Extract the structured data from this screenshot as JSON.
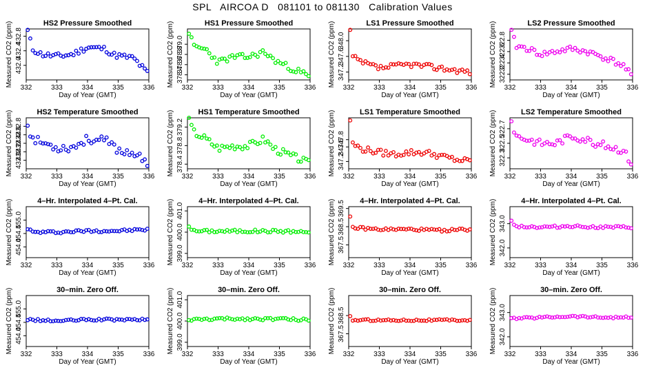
{
  "title": "SPL   AIRCOA D   081101 to 081130   Calibration Values",
  "chart_data": [
    {
      "type": "scatter",
      "title": "HS2 Pressure Smoothed",
      "xlabel": "Day of Year (GMT)",
      "ylabel": "Measured CO2 (ppm)",
      "color": "#0000dd",
      "xlim": [
        332,
        336
      ],
      "ylim": [
        431.6,
        433.0
      ],
      "xticks": [
        332,
        333,
        334,
        335,
        336
      ],
      "yticks": [
        "432.0",
        "432.4",
        "432.8"
      ],
      "seed": 11,
      "anchors": [
        [
          332.05,
          432.95
        ],
        [
          332.2,
          432.45
        ],
        [
          332.5,
          432.3
        ],
        [
          333.0,
          432.25
        ],
        [
          333.5,
          432.3
        ],
        [
          334.0,
          432.5
        ],
        [
          334.6,
          432.45
        ],
        [
          334.8,
          432.3
        ],
        [
          335.1,
          432.25
        ],
        [
          335.5,
          432.2
        ],
        [
          336.0,
          431.75
        ]
      ],
      "noise": 0.08
    },
    {
      "type": "scatter",
      "title": "HS1 Pressure Smoothed",
      "xlabel": "Day of Year (GMT)",
      "ylabel": "Measured CO2 (ppm)",
      "color": "#00ee00",
      "xlim": [
        332,
        336
      ],
      "ylim": [
        378.3,
        379.3
      ],
      "xticks": [
        332,
        333,
        334,
        335,
        336
      ],
      "yticks": [
        "378.4",
        "378.6",
        "378.8",
        "379.0"
      ],
      "seed": 23,
      "anchors": [
        [
          332.05,
          379.25
        ],
        [
          332.2,
          378.95
        ],
        [
          332.6,
          378.9
        ],
        [
          333.0,
          378.65
        ],
        [
          333.5,
          378.75
        ],
        [
          334.0,
          378.75
        ],
        [
          334.5,
          378.85
        ],
        [
          334.8,
          378.7
        ],
        [
          335.3,
          378.55
        ],
        [
          335.7,
          378.45
        ],
        [
          336.0,
          378.35
        ]
      ],
      "noise": 0.06
    },
    {
      "type": "scatter",
      "title": "LS1 Pressure Smoothed",
      "xlabel": "Day of Year (GMT)",
      "ylabel": "Measured CO2 (ppm)",
      "color": "#ee0000",
      "xlim": [
        332,
        336
      ],
      "ylim": [
        347.0,
        348.3
      ],
      "xticks": [
        332,
        333,
        334,
        335,
        336
      ],
      "yticks": [
        "347.2",
        "347.6",
        "348.0"
      ],
      "seed": 37,
      "anchors": [
        [
          332.05,
          348.25
        ],
        [
          332.1,
          347.6
        ],
        [
          332.4,
          347.45
        ],
        [
          333.0,
          347.3
        ],
        [
          333.5,
          347.35
        ],
        [
          334.0,
          347.4
        ],
        [
          334.5,
          347.35
        ],
        [
          335.0,
          347.3
        ],
        [
          335.5,
          347.25
        ],
        [
          336.0,
          347.2
        ]
      ],
      "noise": 0.07
    },
    {
      "type": "scatter",
      "title": "LS2 Pressure Smoothed",
      "xlabel": "Day of Year (GMT)",
      "ylabel": "Measured CO2 (ppm)",
      "color": "#ee00ee",
      "xlim": [
        332,
        336
      ],
      "ylim": [
        322.1,
        323.0
      ],
      "xticks": [
        332,
        333,
        334,
        335,
        336
      ],
      "yticks": [
        "322.2",
        "322.4",
        "322.6",
        "322.8"
      ],
      "seed": 41,
      "anchors": [
        [
          332.05,
          322.95
        ],
        [
          332.2,
          322.7
        ],
        [
          332.6,
          322.65
        ],
        [
          333.0,
          322.55
        ],
        [
          333.5,
          322.6
        ],
        [
          334.0,
          322.65
        ],
        [
          334.5,
          322.6
        ],
        [
          334.8,
          322.55
        ],
        [
          335.3,
          322.45
        ],
        [
          335.7,
          322.35
        ],
        [
          336.0,
          322.15
        ]
      ],
      "noise": 0.05
    },
    {
      "type": "scatter",
      "title": "HS2 Temperature Smoothed",
      "xlabel": "Day of Year (GMT)",
      "ylabel": "Measured CO2 (ppm)",
      "color": "#0000dd",
      "xlim": [
        332,
        336
      ],
      "ylim": [
        431.8,
        433.0
      ],
      "xticks": [
        332,
        333,
        334,
        335,
        336
      ],
      "yticks": [
        "432.0",
        "432.2",
        "432.4",
        "432.6",
        "432.8"
      ],
      "seed": 53,
      "anchors": [
        [
          332.05,
          432.85
        ],
        [
          332.2,
          432.5
        ],
        [
          332.6,
          432.4
        ],
        [
          333.0,
          432.3
        ],
        [
          333.5,
          432.3
        ],
        [
          334.0,
          432.5
        ],
        [
          334.6,
          432.45
        ],
        [
          334.8,
          432.35
        ],
        [
          335.1,
          432.2
        ],
        [
          335.5,
          432.2
        ],
        [
          336.0,
          431.85
        ]
      ],
      "noise": 0.1
    },
    {
      "type": "scatter",
      "title": "HS1 Temperature Smoothed",
      "xlabel": "Day of Year (GMT)",
      "ylabel": "Measured CO2 (ppm)",
      "color": "#00ee00",
      "xlim": [
        332,
        336
      ],
      "ylim": [
        378.3,
        379.4
      ],
      "xticks": [
        332,
        333,
        334,
        335,
        336
      ],
      "yticks": [
        "378.4",
        "378.8",
        "379.2"
      ],
      "seed": 67,
      "anchors": [
        [
          332.05,
          379.35
        ],
        [
          332.2,
          379.1
        ],
        [
          332.6,
          378.95
        ],
        [
          333.0,
          378.75
        ],
        [
          333.5,
          378.8
        ],
        [
          334.0,
          378.8
        ],
        [
          334.5,
          378.95
        ],
        [
          334.8,
          378.75
        ],
        [
          335.3,
          378.6
        ],
        [
          335.7,
          378.5
        ],
        [
          336.0,
          378.4
        ]
      ],
      "noise": 0.08
    },
    {
      "type": "scatter",
      "title": "LS1 Temperature Smoothed",
      "xlabel": "Day of Year (GMT)",
      "ylabel": "Measured CO2 (ppm)",
      "color": "#ee0000",
      "xlim": [
        332,
        336
      ],
      "ylim": [
        347.0,
        348.4
      ],
      "xticks": [
        332,
        333,
        334,
        335,
        336
      ],
      "yticks": [
        "347.2",
        "347.6",
        "347.8"
      ],
      "seed": 79,
      "anchors": [
        [
          332.05,
          348.35
        ],
        [
          332.1,
          347.7
        ],
        [
          332.4,
          347.55
        ],
        [
          333.0,
          347.45
        ],
        [
          333.5,
          347.4
        ],
        [
          334.0,
          347.45
        ],
        [
          334.5,
          347.45
        ],
        [
          335.0,
          347.35
        ],
        [
          335.5,
          347.25
        ],
        [
          336.0,
          347.2
        ]
      ],
      "noise": 0.08
    },
    {
      "type": "scatter",
      "title": "LS2 Temperature Smoothed",
      "xlabel": "Day of Year (GMT)",
      "ylabel": "Measured CO2 (ppm)",
      "color": "#ee00ee",
      "xlim": [
        332,
        336
      ],
      "ylim": [
        322.15,
        322.85
      ],
      "xticks": [
        332,
        333,
        334,
        335,
        336
      ],
      "yticks": [
        "322.3",
        "322.5",
        "322.7"
      ],
      "seed": 83,
      "anchors": [
        [
          332.05,
          322.8
        ],
        [
          332.2,
          322.6
        ],
        [
          332.6,
          322.55
        ],
        [
          333.0,
          322.5
        ],
        [
          333.5,
          322.5
        ],
        [
          334.0,
          322.6
        ],
        [
          334.5,
          322.55
        ],
        [
          334.8,
          322.5
        ],
        [
          335.3,
          322.45
        ],
        [
          335.7,
          322.4
        ],
        [
          336.0,
          322.2
        ]
      ],
      "noise": 0.05
    },
    {
      "type": "scatter",
      "title": "4–Hr. Interpolated 4–Pt. Cal.",
      "xlabel": "Day of Year (GMT)",
      "ylabel": "Measured CO2 (ppm)",
      "color": "#0000dd",
      "xlim": [
        332,
        336
      ],
      "ylim": [
        453.6,
        455.5
      ],
      "xticks": [
        332,
        333,
        334,
        335,
        336
      ],
      "yticks": [
        "454.0",
        "454.5",
        "455.0"
      ],
      "seed": 97,
      "anchors": [
        [
          332.05,
          454.7
        ],
        [
          332.2,
          454.55
        ],
        [
          333.0,
          454.55
        ],
        [
          334.0,
          454.6
        ],
        [
          335.0,
          454.6
        ],
        [
          336.0,
          454.65
        ]
      ],
      "noise": 0.05
    },
    {
      "type": "scatter",
      "title": "4–Hr. Interpolated 4–Pt. Cal.",
      "xlabel": "Day of Year (GMT)",
      "ylabel": "Measured CO2 (ppm)",
      "color": "#00ee00",
      "xlim": [
        332,
        336
      ],
      "ylim": [
        398.8,
        401.2
      ],
      "xticks": [
        332,
        333,
        334,
        335,
        336
      ],
      "yticks": [
        "399.0",
        "400.0",
        "401.0"
      ],
      "seed": 101,
      "anchors": [
        [
          332.05,
          400.3
        ],
        [
          332.2,
          400.05
        ],
        [
          333.0,
          400.05
        ],
        [
          334.0,
          400.05
        ],
        [
          335.0,
          400.05
        ],
        [
          336.0,
          400.0
        ]
      ],
      "noise": 0.07
    },
    {
      "type": "scatter",
      "title": "4–Hr. Interpolated 4–Pt. Cal.",
      "xlabel": "Day of Year (GMT)",
      "ylabel": "Measured CO2 (ppm)",
      "color": "#ee0000",
      "xlim": [
        332,
        336
      ],
      "ylim": [
        366.8,
        369.6
      ],
      "xticks": [
        332,
        333,
        334,
        335,
        336
      ],
      "yticks": [
        "367.5",
        "368.5",
        "369.5"
      ],
      "seed": 109,
      "anchors": [
        [
          332.05,
          369.05
        ],
        [
          332.1,
          368.45
        ],
        [
          333.0,
          368.35
        ],
        [
          334.0,
          368.35
        ],
        [
          335.0,
          368.3
        ],
        [
          336.0,
          368.35
        ]
      ],
      "noise": 0.07
    },
    {
      "type": "scatter",
      "title": "4–Hr. Interpolated 4–Pt. Cal.",
      "xlabel": "Day of Year (GMT)",
      "ylabel": "Measured CO2 (ppm)",
      "color": "#ee00ee",
      "xlim": [
        332,
        336
      ],
      "ylim": [
        341.6,
        343.7
      ],
      "xticks": [
        332,
        333,
        334,
        335,
        336
      ],
      "yticks": [
        "342.0",
        "343.0"
      ],
      "seed": 113,
      "anchors": [
        [
          332.05,
          343.1
        ],
        [
          332.2,
          342.9
        ],
        [
          333.0,
          342.85
        ],
        [
          334.0,
          342.9
        ],
        [
          335.0,
          342.85
        ],
        [
          336.0,
          342.85
        ]
      ],
      "noise": 0.05
    },
    {
      "type": "scatter",
      "title": "30–min. Zero Off.",
      "xlabel": "Day of Year (GMT)",
      "ylabel": "Measured CO2 (ppm)",
      "color": "#0000dd",
      "xlim": [
        332,
        336
      ],
      "ylim": [
        453.6,
        455.5
      ],
      "xticks": [
        332,
        333,
        334,
        335,
        336
      ],
      "yticks": [
        "454.0",
        "454.5",
        "455.0"
      ],
      "seed": 127,
      "anchors": [
        [
          332.05,
          454.6
        ],
        [
          333.0,
          454.55
        ],
        [
          334.0,
          454.6
        ],
        [
          335.0,
          454.6
        ],
        [
          336.0,
          454.6
        ]
      ],
      "noise": 0.04
    },
    {
      "type": "scatter",
      "title": "30–min. Zero Off.",
      "xlabel": "Day of Year (GMT)",
      "ylabel": "Measured CO2 (ppm)",
      "color": "#00ee00",
      "xlim": [
        332,
        336
      ],
      "ylim": [
        398.8,
        401.2
      ],
      "xticks": [
        332,
        333,
        334,
        335,
        336
      ],
      "yticks": [
        "399.0",
        "400.0",
        "401.0"
      ],
      "seed": 131,
      "anchors": [
        [
          332.05,
          400.05
        ],
        [
          333.0,
          400.1
        ],
        [
          334.0,
          400.1
        ],
        [
          335.0,
          400.1
        ],
        [
          336.0,
          400.05
        ]
      ],
      "noise": 0.06
    },
    {
      "type": "scatter",
      "title": "30–min. Zero Off.",
      "xlabel": "Day of Year (GMT)",
      "ylabel": "Measured CO2 (ppm)",
      "color": "#ee0000",
      "xlim": [
        332,
        336
      ],
      "ylim": [
        366.8,
        369.6
      ],
      "xticks": [
        332,
        333,
        334,
        335,
        336
      ],
      "yticks": [
        "367.5",
        "368.5"
      ],
      "seed": 137,
      "anchors": [
        [
          332.05,
          368.45
        ],
        [
          332.1,
          368.25
        ],
        [
          333.0,
          368.25
        ],
        [
          334.0,
          368.25
        ],
        [
          335.0,
          368.25
        ],
        [
          336.0,
          368.25
        ]
      ],
      "noise": 0.05
    },
    {
      "type": "scatter",
      "title": "30–min. Zero Off.",
      "xlabel": "Day of Year (GMT)",
      "ylabel": "Measured CO2 (ppm)",
      "color": "#ee00ee",
      "xlim": [
        332,
        336
      ],
      "ylim": [
        341.6,
        343.7
      ],
      "xticks": [
        332,
        333,
        334,
        335,
        336
      ],
      "yticks": [
        "342.0",
        "343.0"
      ],
      "seed": 139,
      "anchors": [
        [
          332.05,
          342.75
        ],
        [
          333.0,
          342.8
        ],
        [
          334.0,
          342.85
        ],
        [
          335.0,
          342.8
        ],
        [
          336.0,
          342.8
        ]
      ],
      "noise": 0.04
    }
  ]
}
